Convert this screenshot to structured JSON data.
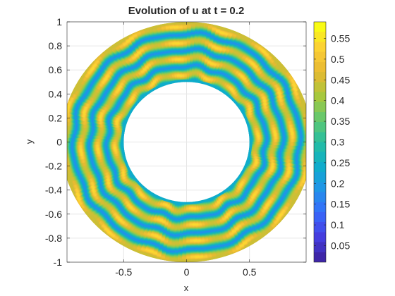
{
  "chart_data": {
    "type": "heatmap",
    "title": "Evolution of u at t = 0.2",
    "xlabel": "x",
    "ylabel": "y",
    "xlim": [
      -0.95,
      0.95
    ],
    "ylim": [
      -1,
      1
    ],
    "x_ticks": [
      -0.5,
      0,
      0.5
    ],
    "x_tick_labels": [
      "-0.5",
      "0",
      "0.5"
    ],
    "y_ticks": [
      1,
      0.8,
      0.6,
      0.4,
      0.2,
      0,
      -0.2,
      -0.4,
      -0.6,
      -0.8,
      -1
    ],
    "y_tick_labels": [
      "1",
      "0.8",
      "0.6",
      "0.4",
      "0.2",
      "0",
      "-0.2",
      "-0.4",
      "-0.6",
      "-0.8",
      "-1"
    ],
    "grid": true,
    "domain": {
      "shape": "annulus",
      "inner_radius": 0.5,
      "outer_radius": 1.0
    },
    "field": {
      "description_of_pattern": "concentric banded rings with angular ripples",
      "ring_centers": [
        0.565,
        0.7,
        0.835,
        0.97
      ],
      "ring_high_value": 0.5,
      "ring_low_value": 0.08
    },
    "colorbar": {
      "colormap": "parula",
      "range": [
        0.01,
        0.59
      ],
      "ticks": [
        0.55,
        0.5,
        0.45,
        0.4,
        0.35,
        0.3,
        0.25,
        0.2,
        0.15,
        0.1,
        0.05
      ],
      "tick_labels": [
        "0.55",
        "0.5",
        "0.45",
        "0.4",
        "0.35",
        "0.3",
        "0.25",
        "0.2",
        "0.15",
        "0.1",
        "0.05"
      ]
    }
  }
}
